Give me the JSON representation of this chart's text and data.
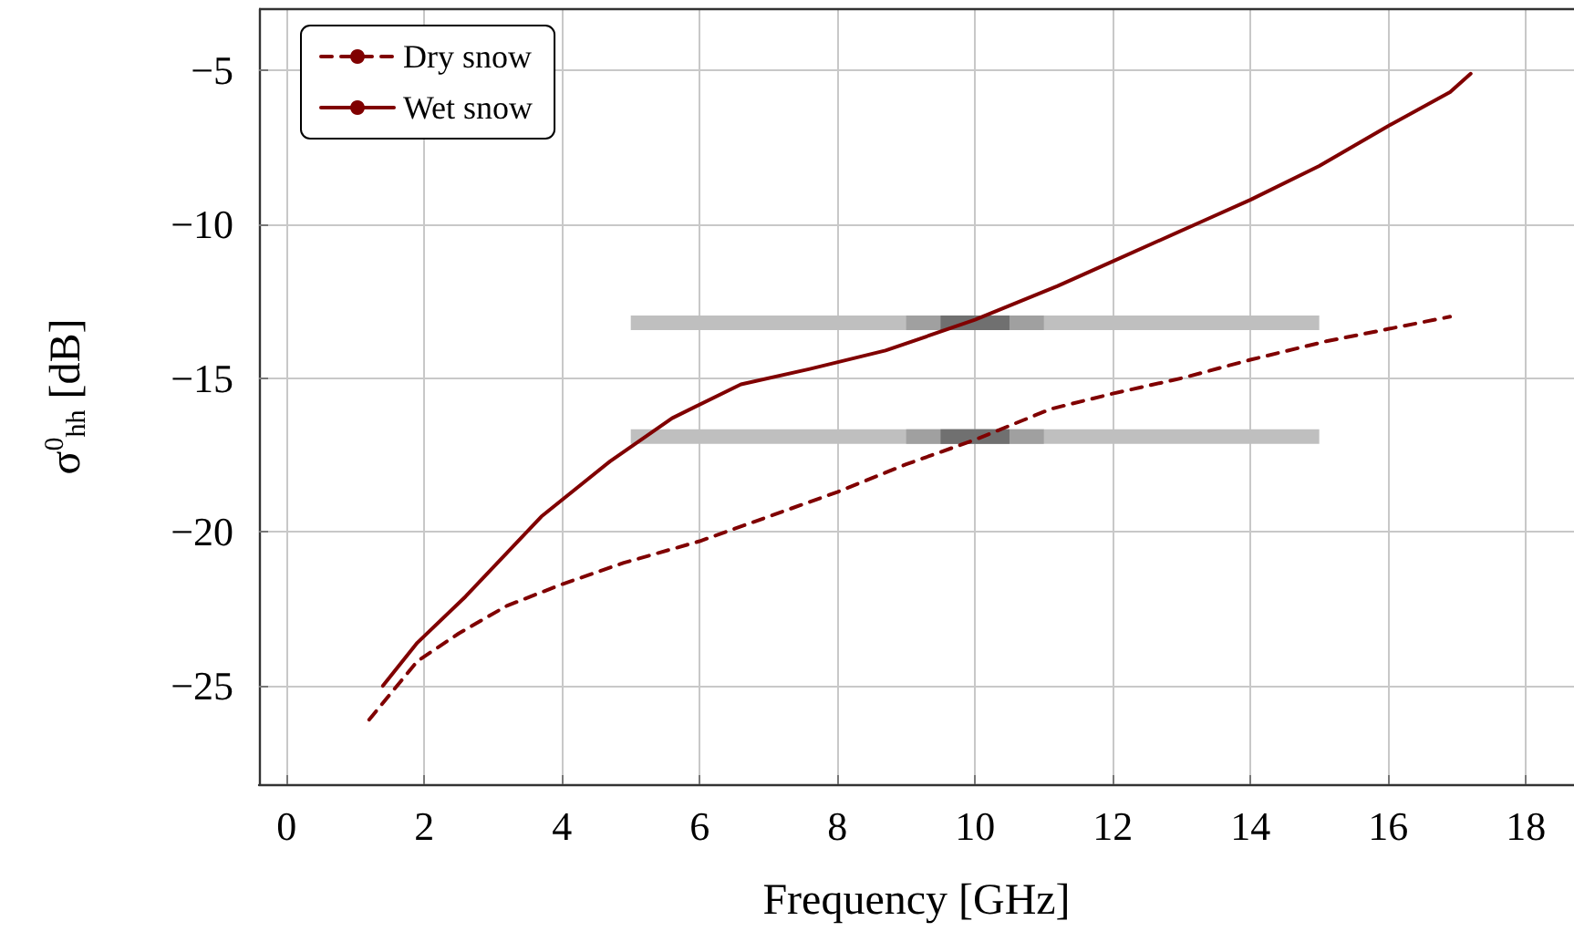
{
  "chart_data": {
    "type": "line",
    "xlabel": "Frequency [GHz]",
    "ylabel": "σ$^{0}$$_{hh}$ [dB]",
    "xlim": [
      -0.4,
      18.7
    ],
    "xticks": [
      0,
      2,
      4,
      6,
      8,
      10,
      12,
      14,
      16,
      18
    ],
    "ylim": [
      -28.2,
      -3
    ],
    "yticks": [
      -25,
      -20,
      -15,
      -10,
      -5
    ],
    "grid": true,
    "legend": "top left",
    "marker": "none",
    "series": [
      {
        "color": "#bfbfbf",
        "x": [
          5,
          15
        ],
        "values": [
          -13.2,
          -13.2
        ]
      },
      {
        "color": "#bfbfbf",
        "x": [
          5,
          15
        ],
        "values": [
          -16.9,
          -16.9
        ]
      },
      {
        "color": "#a0a0a0",
        "x": [
          9,
          11
        ],
        "values": [
          -13.2,
          -13.2
        ]
      },
      {
        "color": "#a0a0a0",
        "x": [
          9,
          11
        ],
        "values": [
          -16.9,
          -16.9
        ]
      },
      {
        "color": "#707070",
        "x": [
          9.5,
          10.5
        ],
        "values": [
          -13.2,
          -13.2
        ]
      },
      {
        "color": "#707070",
        "x": [
          9.5,
          10.5
        ],
        "values": [
          -16.9,
          -16.9
        ]
      },
      {
        "name": "Dry snow",
        "color": "#800000",
        "line_style": "dashed",
        "x": [
          1.2,
          1.9,
          2.5,
          3.2,
          4,
          4.9,
          6,
          7,
          8,
          9,
          10,
          11.1,
          12,
          13,
          14,
          15.1,
          16,
          16.9
        ],
        "values": [
          -26.1,
          -24.2,
          -23.3,
          -22.4,
          -21.7,
          -21,
          -20.3,
          -19.5,
          -18.7,
          -17.8,
          -17,
          -16,
          -15.5,
          -15,
          -14.4,
          -13.8,
          -13.4,
          -13
        ]
      },
      {
        "name": "Wet snow",
        "color": "#800000",
        "line_style": "solid",
        "x": [
          1.4,
          1.9,
          2.6,
          3.7,
          4.7,
          5.6,
          6.6,
          7.6,
          8.7,
          10,
          11.2,
          12,
          13.3,
          14,
          15,
          16,
          16.9,
          17.2
        ],
        "values": [
          -25,
          -23.6,
          -22.1,
          -19.5,
          -17.7,
          -16.3,
          -15.2,
          -14.7,
          -14.1,
          -13.1,
          -12,
          -11.2,
          -9.9,
          -9.2,
          -8.1,
          -6.8,
          -5.7,
          -5.1
        ]
      }
    ]
  }
}
